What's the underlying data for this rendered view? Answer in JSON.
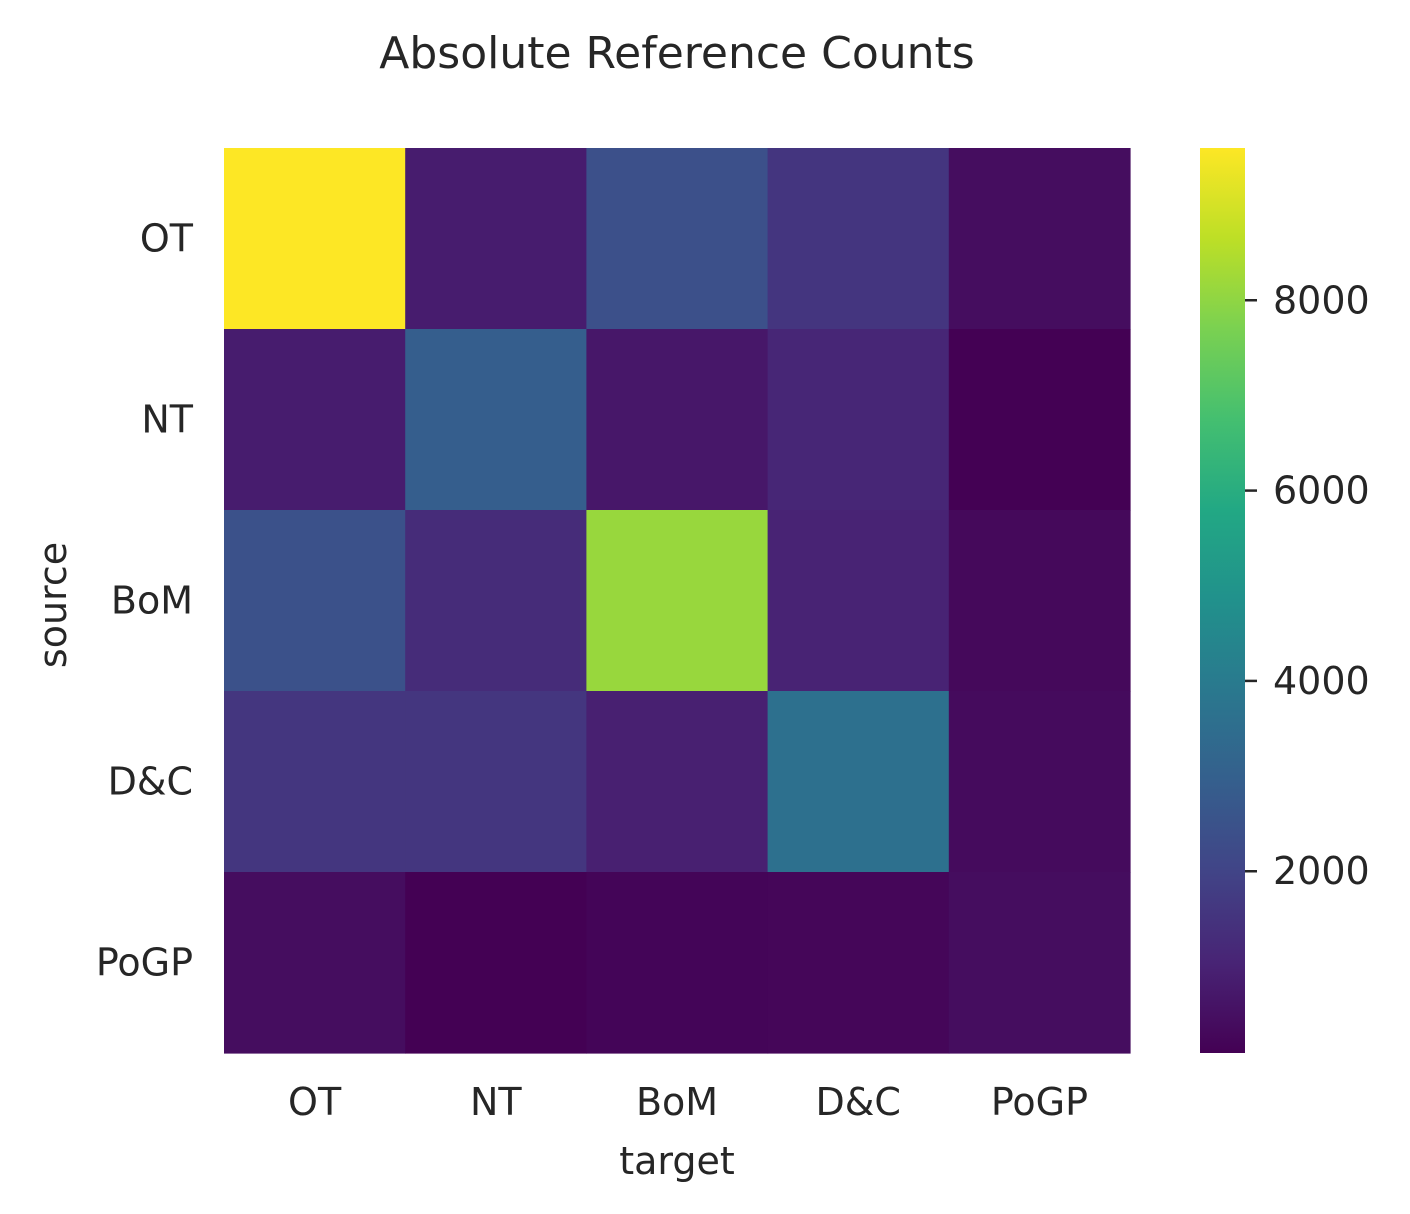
{
  "chart_data": {
    "type": "heatmap",
    "title": "Absolute Reference Counts",
    "xlabel": "target",
    "ylabel": "source",
    "x_categories": [
      "OT",
      "NT",
      "BoM",
      "D&C",
      "PoGP"
    ],
    "y_categories": [
      "OT",
      "NT",
      "BoM",
      "D&C",
      "PoGP"
    ],
    "values": [
      [
        9600,
        830,
        2420,
        1560,
        420
      ],
      [
        830,
        2920,
        700,
        1110,
        90
      ],
      [
        2450,
        1270,
        8130,
        1010,
        300
      ],
      [
        1570,
        1570,
        940,
        3600,
        360
      ],
      [
        420,
        90,
        200,
        220,
        420
      ]
    ],
    "colormap": "viridis",
    "colorbar": {
      "vmin": 90,
      "vmax": 9600,
      "ticks": [
        2000,
        4000,
        6000,
        8000
      ],
      "tick_labels": [
        "2000",
        "4000",
        "6000",
        "8000"
      ]
    },
    "grid": false,
    "legend": "colorbar-right"
  }
}
